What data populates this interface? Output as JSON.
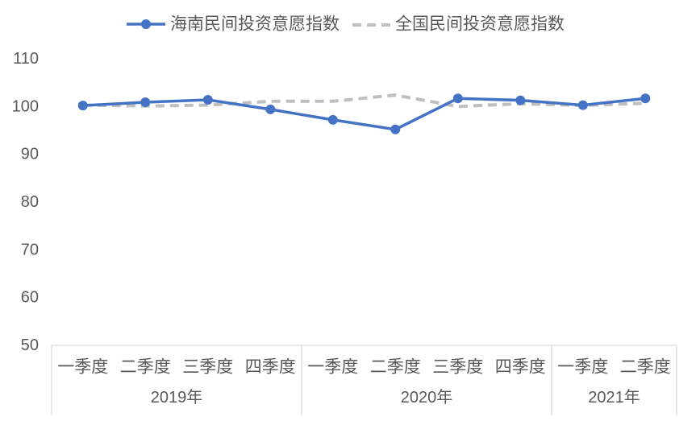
{
  "chart_data": {
    "type": "line",
    "title": "",
    "xlabel": "",
    "ylabel": "",
    "ylim": [
      50,
      110
    ],
    "y_ticks": [
      50,
      60,
      70,
      80,
      90,
      100,
      110
    ],
    "grid": false,
    "legend_position": "top",
    "categories": [
      "一季度",
      "二季度",
      "三季度",
      "四季度",
      "一季度",
      "二季度",
      "三季度",
      "四季度",
      "一季度",
      "二季度"
    ],
    "groups": [
      {
        "label": "2019年",
        "count": 4
      },
      {
        "label": "2020年",
        "count": 4
      },
      {
        "label": "2021年",
        "count": 2
      }
    ],
    "series": [
      {
        "name": "海南民间投资意愿指数",
        "color": "#4472C4",
        "dashed": false,
        "markers": true,
        "values": [
          100.2,
          100.9,
          101.4,
          99.4,
          97.2,
          95.2,
          101.7,
          101.3,
          100.3,
          101.7
        ]
      },
      {
        "name": "全国民间投资意愿指数",
        "color": "#BFBFBF",
        "dashed": true,
        "markers": false,
        "values": [
          100.3,
          100.1,
          100.3,
          101.1,
          101.1,
          102.4,
          100.0,
          100.6,
          100.2,
          100.7
        ]
      }
    ]
  }
}
